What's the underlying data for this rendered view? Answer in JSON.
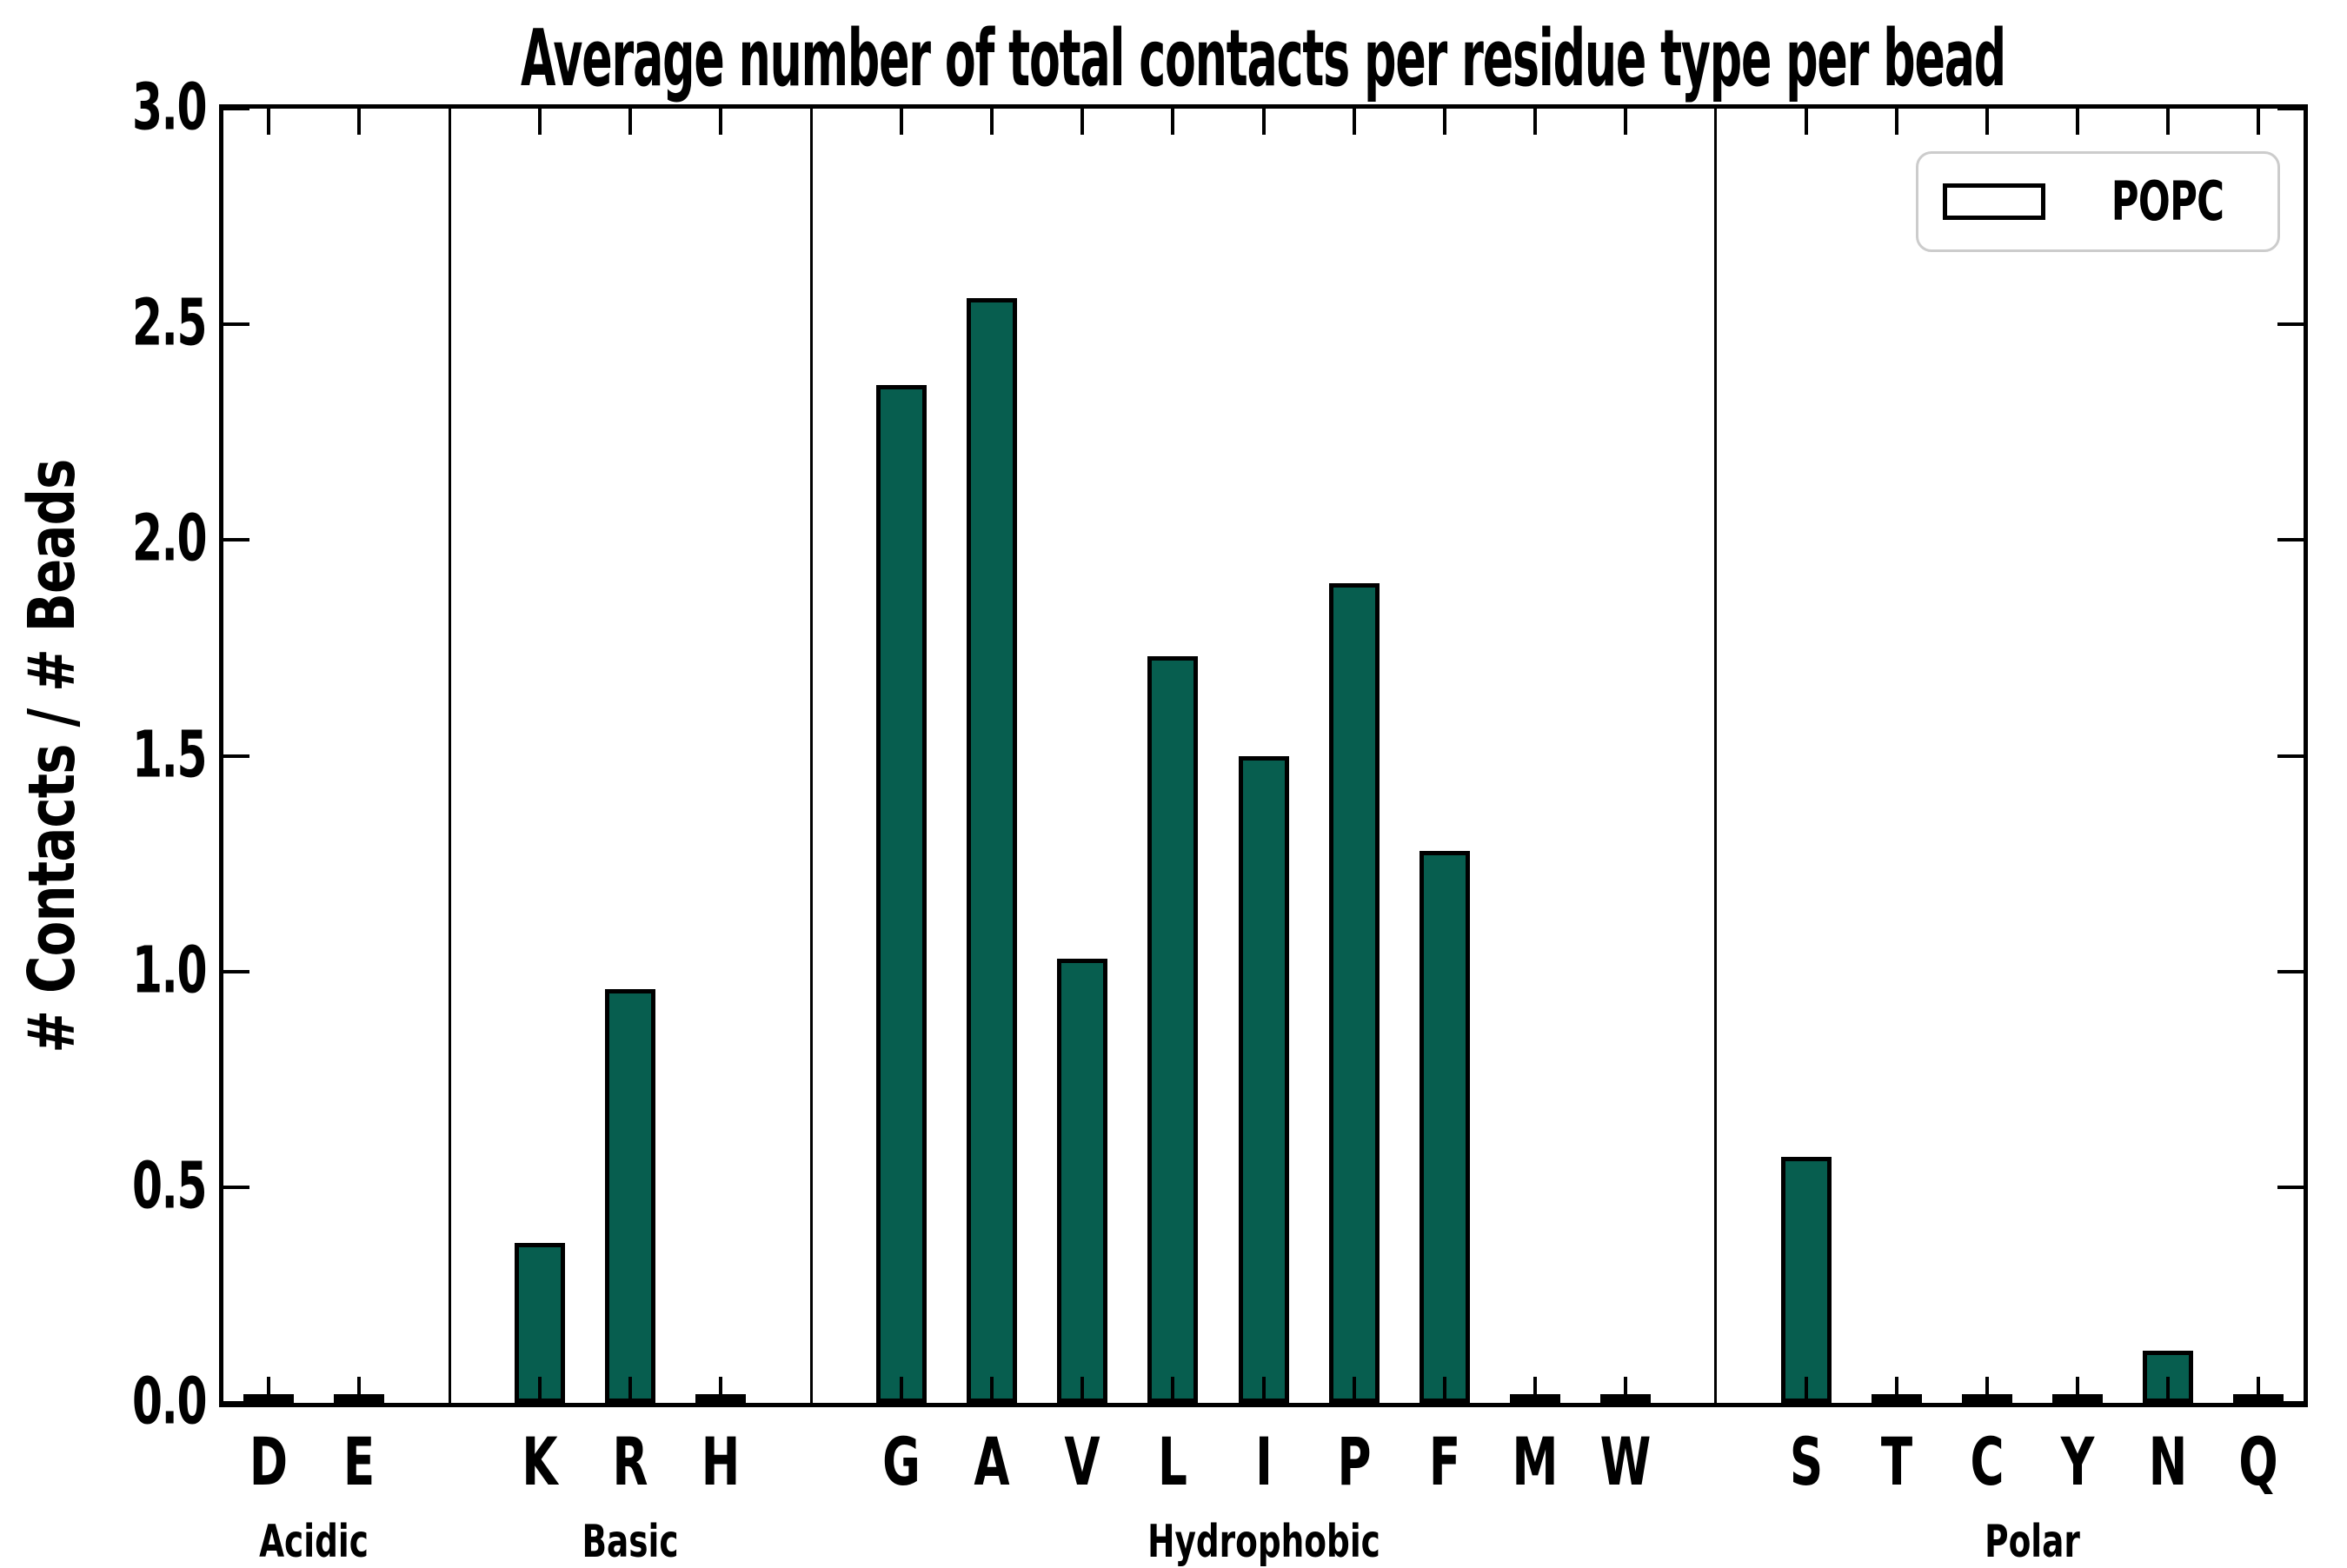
{
  "chart_data": {
    "type": "bar",
    "title": "Average number of total contacts per residue type per bead",
    "ylabel": "# Contacts / # Beads",
    "xlabel": "",
    "ylim": [
      0.0,
      3.0
    ],
    "yticks": [
      0.0,
      0.5,
      1.0,
      1.5,
      2.0,
      2.5,
      3.0
    ],
    "grid": false,
    "legend": {
      "position": "upper right",
      "entries": [
        {
          "label": "POPC",
          "color": "#075e4f"
        }
      ]
    },
    "bar_color": "#075e4f",
    "bar_edge_color": "#000000",
    "groups": [
      {
        "label": "Acidic",
        "categories": [
          "D",
          "E"
        ],
        "values": [
          0.0,
          0.0
        ]
      },
      {
        "label": "Basic",
        "categories": [
          "K",
          "R",
          "H"
        ],
        "values": [
          0.37,
          0.96,
          0.0
        ]
      },
      {
        "label": "Hydrophobic",
        "categories": [
          "G",
          "A",
          "V",
          "L",
          "I",
          "P",
          "F",
          "M",
          "W"
        ],
        "values": [
          2.36,
          2.56,
          1.03,
          1.73,
          1.5,
          1.9,
          1.28,
          0.0,
          0.0
        ]
      },
      {
        "label": "Polar",
        "categories": [
          "S",
          "T",
          "C",
          "Y",
          "N",
          "Q"
        ],
        "values": [
          0.57,
          0.0,
          0.0,
          0.0,
          0.12,
          0.0
        ]
      }
    ]
  }
}
